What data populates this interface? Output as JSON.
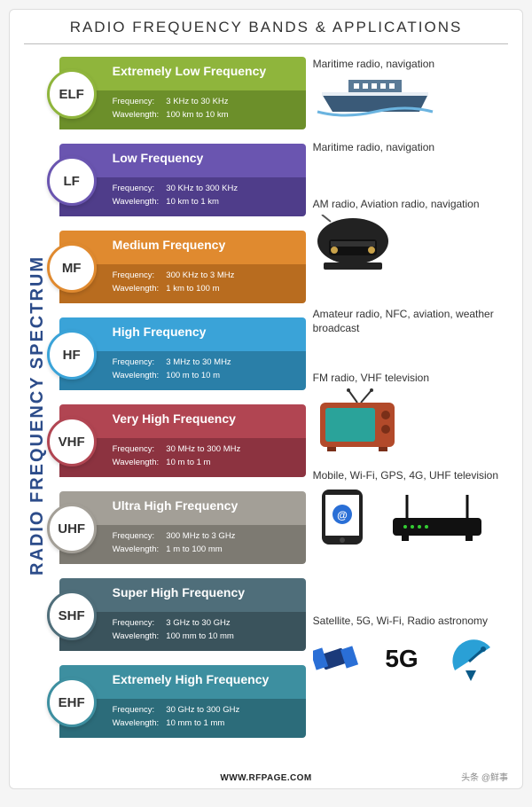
{
  "title": "RADIO FREQUENCY BANDS  & APPLICATIONS",
  "vertical_label": "RADIO FREQUENCY SPECTRUM",
  "footer": "WWW.RFPAGE.COM",
  "watermark": "头条 @鲜事",
  "freq_label": "Frequency:",
  "wave_label": "Wavelength:",
  "bands": [
    {
      "abbr": "ELF",
      "name": "Extremely Low Frequency",
      "freq": "3 KHz to 30 KHz",
      "wave": "100 km to 10 km",
      "color_top": "#8fb53c",
      "color_bot": "#6c8f2a",
      "circle_color": "#8fb53c",
      "app": "Maritime radio, navigation",
      "icon": "ship"
    },
    {
      "abbr": "LF",
      "name": "Low Frequency",
      "freq": "30 KHz to 300 KHz",
      "wave": "10 km to 1 km",
      "color_top": "#6a55b0",
      "color_bot": "#4f3d8a",
      "circle_color": "#6a55b0",
      "app": "Maritime radio, navigation",
      "icon": "none"
    },
    {
      "abbr": "MF",
      "name": "Medium Frequency",
      "freq": "300 KHz to 3 MHz",
      "wave": "1 km to 100 m",
      "color_top": "#e08a2f",
      "color_bot": "#b86c1f",
      "circle_color": "#e08a2f",
      "app": "AM radio, Aviation radio, navigation",
      "icon": "radio"
    },
    {
      "abbr": "HF",
      "name": "High Frequency",
      "freq": "3 MHz to 30 MHz",
      "wave": "100 m to 10 m",
      "color_top": "#3aa3d8",
      "color_bot": "#2a7fa8",
      "circle_color": "#3aa3d8",
      "app": "Amateur radio, NFC, aviation, weather broadcast",
      "icon": "none"
    },
    {
      "abbr": "VHF",
      "name": "Very High Frequency",
      "freq": "30 MHz to 300 MHz",
      "wave": "10 m to 1 m",
      "color_top": "#b14552",
      "color_bot": "#8c3340",
      "circle_color": "#b14552",
      "app": "FM radio, VHF television",
      "icon": "tv"
    },
    {
      "abbr": "UHF",
      "name": "Ultra High Frequency",
      "freq": "300 MHz to 3 GHz",
      "wave": "1 m to 100 mm",
      "color_top": "#a39f97",
      "color_bot": "#7d7a72",
      "circle_color": "#a39f97",
      "app": "Mobile, Wi-Fi, GPS, 4G, UHF television",
      "icon": "phone-router"
    },
    {
      "abbr": "SHF",
      "name": "Super High Frequency",
      "freq": "3 GHz to 30 GHz",
      "wave": "100 mm to 10 mm",
      "color_top": "#4f6e7a",
      "color_bot": "#3a535c",
      "circle_color": "#4f6e7a",
      "app": "",
      "icon": "none"
    },
    {
      "abbr": "EHF",
      "name": "Extremely High Frequency",
      "freq": "30 GHz to 300 GHz",
      "wave": "10 mm to 1 mm",
      "color_top": "#3d8fa0",
      "color_bot": "#2c6c7a",
      "circle_color": "#3d8fa0",
      "app": "Satellite, 5G, Wi-Fi, Radio astronomy",
      "icon": "sat-5g-dish"
    }
  ],
  "icons": {
    "ship_hull": "#3a5a78",
    "ship_top": "#5a7a96",
    "ship_white": "#e8eef4",
    "radio_body": "#222222",
    "radio_dial": "#c9a24a",
    "tv_body": "#b24a2a",
    "tv_screen": "#2aa39a",
    "phone_body": "#222222",
    "phone_screen": "#ffffff",
    "phone_blue": "#2a6fd6",
    "router_body": "#111111",
    "sat_body": "#1a3a7a",
    "dish_blue": "#2aa0d6",
    "five_g": "5G"
  }
}
